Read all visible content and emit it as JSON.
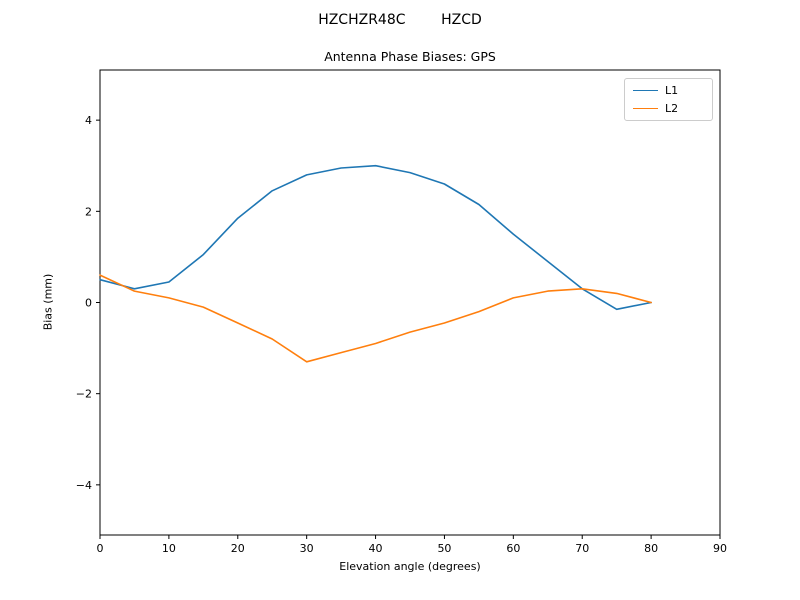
{
  "figure": {
    "suptitle": "HZCHZR48C        HZCD"
  },
  "chart_data": {
    "type": "line",
    "title": "Antenna Phase Biases: GPS",
    "xlabel": "Elevation angle (degrees)",
    "ylabel": "Bias (mm)",
    "xlim": [
      0,
      90
    ],
    "ylim": [
      -5.1,
      5.1
    ],
    "xticks": [
      0,
      10,
      20,
      30,
      40,
      50,
      60,
      70,
      80,
      90
    ],
    "yticks": [
      -4,
      -2,
      0,
      2,
      4
    ],
    "grid": false,
    "legend_position": "upper right",
    "x": [
      0,
      5,
      10,
      15,
      20,
      25,
      30,
      35,
      40,
      45,
      50,
      55,
      60,
      65,
      70,
      75,
      80
    ],
    "series": [
      {
        "name": "L1",
        "color": "#1f77b4",
        "values": [
          0.5,
          0.3,
          0.45,
          1.05,
          1.85,
          2.45,
          2.8,
          2.95,
          3.0,
          2.85,
          2.6,
          2.15,
          1.5,
          0.9,
          0.3,
          -0.15,
          0.0
        ]
      },
      {
        "name": "L2",
        "color": "#ff7f0e",
        "values": [
          0.6,
          0.25,
          0.1,
          -0.1,
          -0.45,
          -0.8,
          -1.3,
          -1.1,
          -0.9,
          -0.65,
          -0.45,
          -0.2,
          0.1,
          0.25,
          0.3,
          0.2,
          0.0
        ]
      }
    ]
  }
}
